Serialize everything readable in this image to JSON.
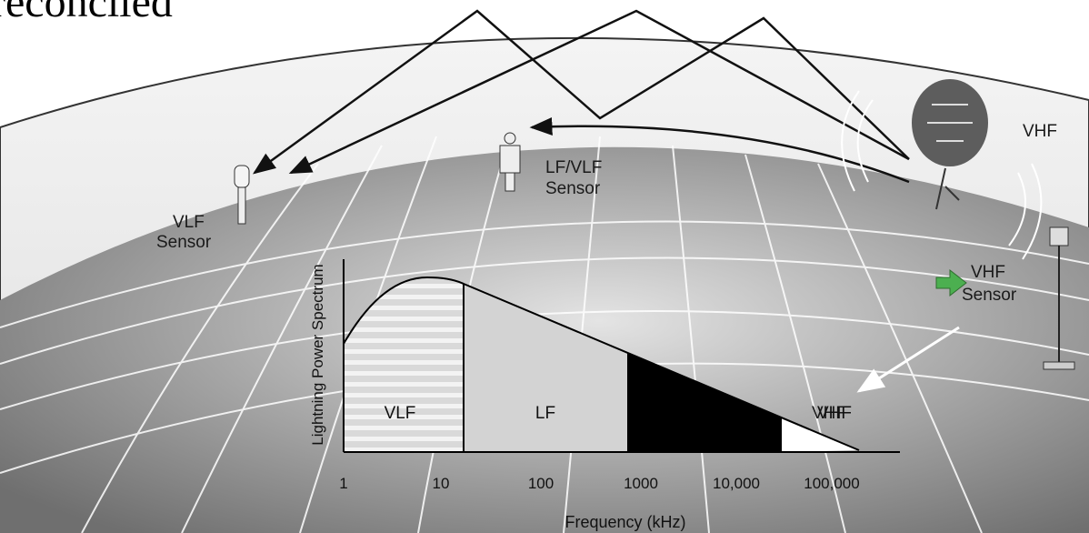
{
  "header": {
    "title": "reconciled"
  },
  "sky": {
    "label": "VHF"
  },
  "sensors": [
    {
      "label": [
        "VLF",
        "Sensor"
      ]
    },
    {
      "label": [
        "LF/VLF",
        "Sensor"
      ]
    },
    {
      "label": [
        "VHF",
        "Sensor"
      ]
    }
  ],
  "vhf_pointer": {
    "label": "VHF"
  },
  "spectrum": {
    "y_label": "Lightning Power Spectrum",
    "x_label": "Frequency (kHz)",
    "bands": [
      "VLF",
      "LF",
      "VHF"
    ],
    "ticks": [
      "1",
      "10",
      "100",
      "1000",
      "10,000",
      "100,000"
    ]
  }
}
